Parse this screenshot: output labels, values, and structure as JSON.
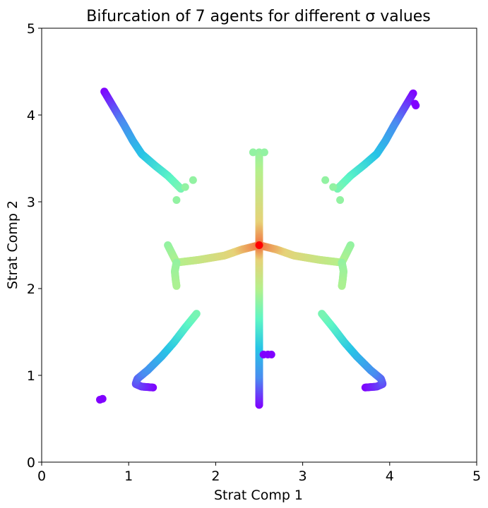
{
  "chart_data": {
    "type": "scatter",
    "title": "Bifurcation of 7 agents for different σ values",
    "xlabel": "Strat Comp 1",
    "ylabel": "Strat Comp 2",
    "xlim": [
      0,
      5
    ],
    "ylim": [
      0,
      5
    ],
    "xticks": [
      "0",
      "1",
      "2",
      "3",
      "4",
      "5"
    ],
    "yticks": [
      "0",
      "1",
      "2",
      "3",
      "4",
      "5"
    ],
    "grid": false,
    "colormap": "rainbow",
    "colormap_stops": [
      "#8000ff",
      "#4a8cf0",
      "#27c4e6",
      "#5ef6c4",
      "#b4f08c",
      "#e6d278",
      "#ff0000"
    ],
    "marker_size_note": "dots",
    "branches": [
      {
        "label": "top-left",
        "points": [
          [
            0.72,
            4.27
          ],
          [
            0.85,
            4.05
          ],
          [
            0.95,
            3.88
          ],
          [
            1.05,
            3.7
          ],
          [
            1.15,
            3.55
          ],
          [
            1.3,
            3.42
          ],
          [
            1.45,
            3.3
          ],
          [
            1.55,
            3.2
          ],
          [
            1.6,
            3.15
          ]
        ],
        "t_range": [
          0.0,
          0.55
        ]
      },
      {
        "label": "top-right",
        "points": [
          [
            4.27,
            4.25
          ],
          [
            4.15,
            4.05
          ],
          [
            4.05,
            3.88
          ],
          [
            3.95,
            3.7
          ],
          [
            3.85,
            3.55
          ],
          [
            3.7,
            3.42
          ],
          [
            3.55,
            3.3
          ],
          [
            3.45,
            3.2
          ],
          [
            3.4,
            3.15
          ]
        ],
        "t_range": [
          0.0,
          0.55
        ]
      },
      {
        "label": "bottom-left",
        "points": [
          [
            1.28,
            0.86
          ],
          [
            1.15,
            0.87
          ],
          [
            1.08,
            0.9
          ],
          [
            1.1,
            0.96
          ],
          [
            1.22,
            1.06
          ],
          [
            1.38,
            1.22
          ],
          [
            1.52,
            1.38
          ],
          [
            1.65,
            1.55
          ],
          [
            1.78,
            1.71
          ]
        ],
        "t_range": [
          0.0,
          0.55
        ]
      },
      {
        "label": "bottom-right",
        "points": [
          [
            3.72,
            0.86
          ],
          [
            3.85,
            0.87
          ],
          [
            3.92,
            0.9
          ],
          [
            3.9,
            0.96
          ],
          [
            3.78,
            1.06
          ],
          [
            3.62,
            1.22
          ],
          [
            3.48,
            1.38
          ],
          [
            3.35,
            1.55
          ],
          [
            3.22,
            1.71
          ]
        ],
        "t_range": [
          0.0,
          0.55
        ]
      },
      {
        "label": "center-vertical-lower",
        "points": [
          [
            2.5,
            0.66
          ],
          [
            2.5,
            1.0
          ],
          [
            2.5,
            1.4
          ],
          [
            2.5,
            1.8
          ],
          [
            2.5,
            2.2
          ],
          [
            2.5,
            2.5
          ]
        ],
        "t_range": [
          0.0,
          0.9
        ]
      },
      {
        "label": "center-vertical-upper",
        "points": [
          [
            2.5,
            3.57
          ],
          [
            2.5,
            3.3
          ],
          [
            2.5,
            3.0
          ],
          [
            2.5,
            2.7
          ],
          [
            2.5,
            2.5
          ]
        ],
        "t_range": [
          0.6,
          0.9
        ]
      },
      {
        "label": "left-arm",
        "points": [
          [
            1.45,
            2.5
          ],
          [
            1.5,
            2.4
          ],
          [
            1.55,
            2.3
          ],
          [
            1.8,
            2.33
          ],
          [
            2.1,
            2.38
          ],
          [
            2.3,
            2.45
          ],
          [
            2.5,
            2.5
          ]
        ],
        "t_range": [
          0.6,
          0.9
        ]
      },
      {
        "label": "left-arm-drop",
        "points": [
          [
            1.55,
            2.3
          ],
          [
            1.53,
            2.2
          ],
          [
            1.54,
            2.1
          ],
          [
            1.55,
            2.03
          ]
        ],
        "t_range": [
          0.6,
          0.65
        ]
      },
      {
        "label": "right-arm",
        "points": [
          [
            3.55,
            2.5
          ],
          [
            3.5,
            2.4
          ],
          [
            3.45,
            2.3
          ],
          [
            3.2,
            2.33
          ],
          [
            2.9,
            2.38
          ],
          [
            2.7,
            2.45
          ],
          [
            2.5,
            2.5
          ]
        ],
        "t_range": [
          0.6,
          0.9
        ]
      },
      {
        "label": "right-arm-drop",
        "points": [
          [
            3.45,
            2.3
          ],
          [
            3.47,
            2.2
          ],
          [
            3.46,
            2.1
          ],
          [
            3.45,
            2.03
          ]
        ],
        "t_range": [
          0.6,
          0.65
        ]
      }
    ],
    "isolated_points": [
      {
        "x": 0.67,
        "y": 0.72,
        "t": 0.0
      },
      {
        "x": 0.7,
        "y": 0.73,
        "t": 0.0
      },
      {
        "x": 4.3,
        "y": 4.11,
        "t": 0.0
      },
      {
        "x": 4.29,
        "y": 4.13,
        "t": 0.0
      },
      {
        "x": 2.55,
        "y": 1.24,
        "t": 0.0
      },
      {
        "x": 2.6,
        "y": 1.24,
        "t": 0.0
      },
      {
        "x": 2.64,
        "y": 1.24,
        "t": 0.0
      },
      {
        "x": 1.74,
        "y": 3.25,
        "t": 0.6
      },
      {
        "x": 1.65,
        "y": 3.17,
        "t": 0.6
      },
      {
        "x": 1.55,
        "y": 3.02,
        "t": 0.6
      },
      {
        "x": 3.26,
        "y": 3.25,
        "t": 0.6
      },
      {
        "x": 3.35,
        "y": 3.17,
        "t": 0.6
      },
      {
        "x": 3.43,
        "y": 3.02,
        "t": 0.6
      },
      {
        "x": 2.43,
        "y": 3.57,
        "t": 0.6
      },
      {
        "x": 2.56,
        "y": 3.57,
        "t": 0.6
      }
    ],
    "highlight_point": {
      "x": 2.5,
      "y": 2.5,
      "color": "#ff0000"
    }
  }
}
